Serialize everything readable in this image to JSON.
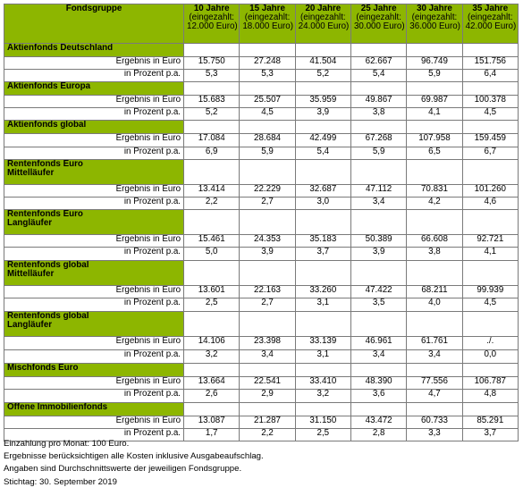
{
  "header": {
    "title": "Fondsgruppe",
    "periods": [
      {
        "years": "10 Jahre",
        "note": "(eingezahlt:",
        "amount": "12.000 Euro)"
      },
      {
        "years": "15 Jahre",
        "note": "(eingezahlt:",
        "amount": "18.000 Euro)"
      },
      {
        "years": "20 Jahre",
        "note": "(eingezahlt:",
        "amount": "24.000 Euro)"
      },
      {
        "years": "25 Jahre",
        "note": "(eingezahlt:",
        "amount": "30.000 Euro)"
      },
      {
        "years": "30 Jahre",
        "note": "(eingezahlt:",
        "amount": "36.000 Euro)"
      },
      {
        "years": "35 Jahre",
        "note": "(eingezahlt:",
        "amount": "42.000 Euro)"
      }
    ]
  },
  "labels": {
    "result": "Ergebnis in Euro",
    "percent": "in Prozent p.a."
  },
  "funds": [
    {
      "name": [
        "Aktienfonds Deutschland"
      ],
      "result": [
        "15.750",
        "27.248",
        "41.504",
        "62.667",
        "96.749",
        "151.756"
      ],
      "percent": [
        "5,3",
        "5,3",
        "5,2",
        "5,4",
        "5,9",
        "6,4"
      ]
    },
    {
      "name": [
        "Aktienfonds Europa"
      ],
      "result": [
        "15.683",
        "25.507",
        "35.959",
        "49.867",
        "69.987",
        "100.378"
      ],
      "percent": [
        "5,2",
        "4,5",
        "3,9",
        "3,8",
        "4,1",
        "4,5"
      ]
    },
    {
      "name": [
        "Aktienfonds global"
      ],
      "result": [
        "17.084",
        "28.684",
        "42.499",
        "67.268",
        "107.958",
        "159.459"
      ],
      "percent": [
        "6,9",
        "5,9",
        "5,4",
        "5,9",
        "6,5",
        "6,7"
      ]
    },
    {
      "name": [
        "Rentenfonds Euro",
        "Mittelläufer"
      ],
      "result": [
        "13.414",
        "22.229",
        "32.687",
        "47.112",
        "70.831",
        "101.260"
      ],
      "percent": [
        "2,2",
        "2,7",
        "3,0",
        "3,4",
        "4,2",
        "4,6"
      ]
    },
    {
      "name": [
        "Rentenfonds Euro",
        "Langläufer"
      ],
      "result": [
        "15.461",
        "24.353",
        "35.183",
        "50.389",
        "66.608",
        "92.721"
      ],
      "percent": [
        "5,0",
        "3,9",
        "3,7",
        "3,9",
        "3,8",
        "4,1"
      ]
    },
    {
      "name": [
        "Rentenfonds global",
        "Mittelläufer"
      ],
      "result": [
        "13.601",
        "22.163",
        "33.260",
        "47.422",
        "68.211",
        "99.939"
      ],
      "percent": [
        "2,5",
        "2,7",
        "3,1",
        "3,5",
        "4,0",
        "4,5"
      ]
    },
    {
      "name": [
        "Rentenfonds global",
        "Langläufer"
      ],
      "result": [
        "14.106",
        "23.398",
        "33.139",
        "46.961",
        "61.761",
        "./."
      ],
      "percent": [
        "3,2",
        "3,4",
        "3,1",
        "3,4",
        "3,4",
        "0,0"
      ]
    },
    {
      "name": [
        "Mischfonds Euro"
      ],
      "result": [
        "13.664",
        "22.541",
        "33.410",
        "48.390",
        "77.556",
        "106.787"
      ],
      "percent": [
        "2,6",
        "2,9",
        "3,2",
        "3,6",
        "4,7",
        "4,8"
      ]
    },
    {
      "name": [
        "Offene Immobilienfonds"
      ],
      "result": [
        "13.087",
        "21.287",
        "31.150",
        "43.472",
        "60.733",
        "85.291"
      ],
      "percent": [
        "1,7",
        "2,2",
        "2,5",
        "2,8",
        "3,3",
        "3,7"
      ]
    }
  ],
  "notes": [
    "Einzahlung pro Monat: 100 Euro.",
    "Ergebnisse berücksichtigen alle Kosten inklusive Ausgabeaufschlag.",
    "Angaben sind Durchschnittswerte der jeweiligen Fondsgruppe.",
    "Stichtag: 30. September 2019"
  ]
}
